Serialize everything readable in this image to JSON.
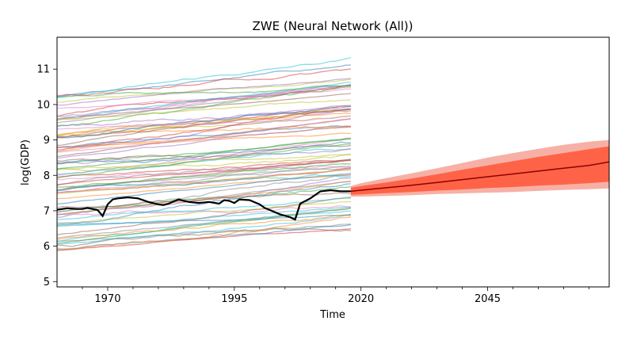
{
  "chart_data": {
    "type": "line",
    "title": "ZWE (Neural Network (All))",
    "xlabel": "Time",
    "ylabel": "log(GDP)",
    "xlim": [
      1960,
      2069
    ],
    "ylim": [
      4.85,
      11.9
    ],
    "x_ticks": [
      1970,
      1995,
      2020,
      2045
    ],
    "y_ticks": [
      5,
      6,
      7,
      8,
      9,
      10,
      11
    ],
    "grid": false,
    "legend": "none",
    "history_start": 1960,
    "history_end": 2018,
    "background_series": {
      "count": 80,
      "color_cycle": [
        "#1f77b4",
        "#ff7f0e",
        "#2ca02c",
        "#d62728",
        "#9467bd",
        "#8c564b",
        "#e377c2",
        "#7f7f7f",
        "#bcbd22",
        "#17becf"
      ],
      "start_values_range": [
        5.8,
        10.3
      ],
      "end_values_range": [
        6.5,
        11.35
      ]
    },
    "highlight_series": {
      "color": "#000000",
      "x": [
        1960,
        1962,
        1964,
        1965,
        1966,
        1967,
        1968,
        1969,
        1970,
        1971,
        1972,
        1974,
        1976,
        1977,
        1978,
        1980,
        1981,
        1982,
        1984,
        1985,
        1986,
        1988,
        1990,
        1992,
        1993,
        1994,
        1995,
        1996,
        1998,
        2000,
        2001,
        2002,
        2004,
        2006,
        2007,
        2008,
        2010,
        2012,
        2014,
        2016,
        2018
      ],
      "values": [
        7.03,
        7.07,
        7.05,
        7.05,
        7.08,
        7.05,
        7.02,
        6.85,
        7.18,
        7.32,
        7.35,
        7.38,
        7.35,
        7.3,
        7.25,
        7.18,
        7.16,
        7.2,
        7.32,
        7.28,
        7.25,
        7.22,
        7.25,
        7.2,
        7.3,
        7.28,
        7.22,
        7.32,
        7.3,
        7.18,
        7.08,
        7.02,
        6.9,
        6.82,
        6.75,
        7.2,
        7.35,
        7.55,
        7.58,
        7.55,
        7.55
      ]
    },
    "forecast": {
      "x": [
        2018,
        2020,
        2025,
        2030,
        2035,
        2040,
        2045,
        2050,
        2055,
        2060,
        2065,
        2069
      ],
      "median": [
        7.55,
        7.58,
        7.65,
        7.72,
        7.8,
        7.88,
        7.96,
        8.04,
        8.12,
        8.2,
        8.28,
        8.38
      ],
      "inner_low": [
        7.45,
        7.46,
        7.5,
        7.53,
        7.57,
        7.6,
        7.64,
        7.67,
        7.71,
        7.74,
        7.78,
        7.82
      ],
      "inner_high": [
        7.65,
        7.7,
        7.8,
        7.91,
        8.03,
        8.16,
        8.28,
        8.4,
        8.52,
        8.63,
        8.74,
        8.82
      ],
      "outer_low": [
        7.4,
        7.4,
        7.42,
        7.44,
        7.47,
        7.49,
        7.51,
        7.53,
        7.56,
        7.59,
        7.61,
        7.63
      ],
      "outer_high": [
        7.7,
        7.78,
        7.92,
        8.06,
        8.2,
        8.35,
        8.5,
        8.63,
        8.75,
        8.86,
        8.95,
        9.0
      ],
      "median_color": "#8b0000",
      "inner_color": "#ff6347",
      "outer_color": "#f7b0a6"
    }
  }
}
